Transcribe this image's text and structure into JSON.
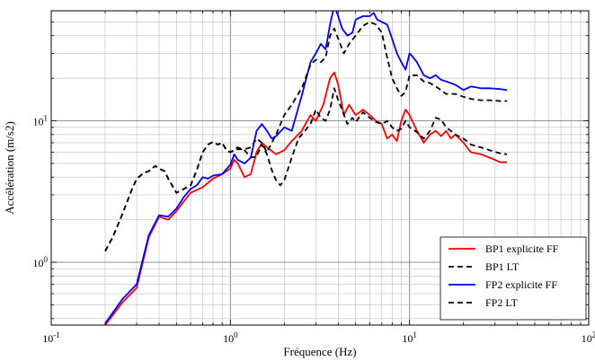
{
  "chart_data": {
    "type": "line",
    "xlabel": "Fréquence (Hz)",
    "ylabel": "Accélération (m/s2)",
    "x_scale": "log",
    "y_scale": "log",
    "xlim": [
      0.1,
      100
    ],
    "ylim": [
      0.36,
      60
    ],
    "grid": true,
    "legend_position": "bottom-right",
    "x_ticks": [
      {
        "base": "10",
        "exp": "-1"
      },
      {
        "base": "10",
        "exp": "0"
      },
      {
        "base": "10",
        "exp": "1"
      },
      {
        "base": "10",
        "exp": "2"
      }
    ],
    "y_ticks": [
      {
        "value": 1,
        "base": "10",
        "exp": "0"
      },
      {
        "value": 10,
        "base": "10",
        "exp": "1"
      }
    ],
    "series": [
      {
        "name": "BP1 explicite FF",
        "color": "#ff0000",
        "dash": "solid",
        "x": [
          0.2,
          0.25,
          0.3,
          0.35,
          0.4,
          0.45,
          0.5,
          0.55,
          0.6,
          0.7,
          0.8,
          0.9,
          1.0,
          1.05,
          1.1,
          1.2,
          1.3,
          1.4,
          1.5,
          1.6,
          1.8,
          2.0,
          2.2,
          2.5,
          2.8,
          3.0,
          3.3,
          3.6,
          3.8,
          4.0,
          4.3,
          4.6,
          5.0,
          5.5,
          6.0,
          6.5,
          7.0,
          7.5,
          8.0,
          8.5,
          9.0,
          9.5,
          10.0,
          11.0,
          12.0,
          13.0,
          14.0,
          15.0,
          16.0,
          17.0,
          18.0,
          20.0,
          22.0,
          25.0,
          28.0,
          32.0,
          35.0
        ],
        "y": [
          0.36,
          0.52,
          0.66,
          1.5,
          2.1,
          2.0,
          2.3,
          2.7,
          3.1,
          3.4,
          3.9,
          4.2,
          4.6,
          5.3,
          5.0,
          4.0,
          4.2,
          6.0,
          7.0,
          6.5,
          5.8,
          6.2,
          7.2,
          8.5,
          11.0,
          10.0,
          13.0,
          20.0,
          22.0,
          18.0,
          11.0,
          13.0,
          11.0,
          12.0,
          11.0,
          10.0,
          9.5,
          7.5,
          8.0,
          7.2,
          10.0,
          12.0,
          11.0,
          8.5,
          7.0,
          8.0,
          8.5,
          7.8,
          8.5,
          7.5,
          8.0,
          7.0,
          6.0,
          5.8,
          5.5,
          5.1,
          5.1
        ]
      },
      {
        "name": "BP1 LT",
        "color": "#000000",
        "dash": "dashed",
        "x": [
          0.2,
          0.22,
          0.25,
          0.28,
          0.3,
          0.33,
          0.35,
          0.38,
          0.4,
          0.43,
          0.45,
          0.5,
          0.55,
          0.6,
          0.65,
          0.7,
          0.75,
          0.8,
          0.85,
          0.9,
          0.95,
          1.0,
          1.1,
          1.2,
          1.3,
          1.4,
          1.5,
          1.6,
          1.7,
          1.8,
          1.9,
          2.0,
          2.2,
          2.4,
          2.6,
          2.8,
          3.0,
          3.2,
          3.4,
          3.6,
          3.8,
          4.0,
          4.2,
          4.5,
          4.8,
          5.0,
          5.5,
          6.0,
          6.5,
          7.0,
          7.5,
          8.0,
          8.5,
          9.0,
          9.5,
          10.0,
          11.0,
          12.0,
          13.0,
          14.0,
          15.0,
          16.0,
          18.0,
          20.0,
          22.0,
          25.0,
          28.0,
          32.0,
          35.0
        ],
        "y": [
          1.2,
          1.5,
          2.2,
          3.2,
          3.9,
          4.3,
          4.4,
          4.8,
          4.6,
          4.4,
          3.9,
          3.1,
          3.3,
          3.5,
          4.5,
          6.0,
          6.8,
          7.1,
          6.8,
          7.0,
          6.2,
          6.0,
          6.5,
          6.2,
          5.5,
          5.6,
          6.8,
          5.8,
          4.5,
          3.8,
          3.5,
          3.8,
          5.5,
          7.5,
          8.5,
          9.5,
          12.0,
          10.5,
          10.0,
          12.0,
          17.0,
          14.0,
          12.0,
          9.5,
          10.5,
          9.8,
          11.5,
          10.5,
          9.8,
          9.5,
          10.0,
          9.0,
          8.5,
          8.8,
          10.0,
          9.0,
          8.3,
          7.5,
          8.5,
          10.5,
          10.2,
          9.0,
          8.0,
          7.5,
          6.8,
          6.5,
          6.2,
          5.9,
          5.8
        ]
      },
      {
        "name": "FP2 explicite FF",
        "color": "#0000ff",
        "dash": "solid",
        "x": [
          0.2,
          0.25,
          0.3,
          0.35,
          0.4,
          0.45,
          0.5,
          0.55,
          0.6,
          0.65,
          0.7,
          0.75,
          0.8,
          0.9,
          1.0,
          1.05,
          1.1,
          1.2,
          1.3,
          1.4,
          1.5,
          1.6,
          1.7,
          1.8,
          2.0,
          2.2,
          2.5,
          2.8,
          3.0,
          3.2,
          3.4,
          3.6,
          3.8,
          4.0,
          4.2,
          4.5,
          4.8,
          5.0,
          5.5,
          6.0,
          6.3,
          6.6,
          7.0,
          7.5,
          8.0,
          8.5,
          9.0,
          9.5,
          10.0,
          10.5,
          11.0,
          12.0,
          13.0,
          14.0,
          15.0,
          16.0,
          18.0,
          20.0,
          22.0,
          25.0,
          28.0,
          32.0,
          35.0
        ],
        "y": [
          0.37,
          0.55,
          0.7,
          1.55,
          2.15,
          2.1,
          2.4,
          2.9,
          3.3,
          3.5,
          4.0,
          3.9,
          4.1,
          4.2,
          4.9,
          5.8,
          5.3,
          5.0,
          5.5,
          8.5,
          9.5,
          8.5,
          7.5,
          7.8,
          9.0,
          8.5,
          15.0,
          26.0,
          30.0,
          35.0,
          32.0,
          48.0,
          65.0,
          55.0,
          45.0,
          40.0,
          42.0,
          52.0,
          55.0,
          55.0,
          58.0,
          52.0,
          50.0,
          48.0,
          38.0,
          30.0,
          26.0,
          23.0,
          30.0,
          28.0,
          26.0,
          21.0,
          20.0,
          21.0,
          19.5,
          19.0,
          18.0,
          16.5,
          17.5,
          17.0,
          17.0,
          16.8,
          16.5
        ]
      },
      {
        "name": "FP2 LT",
        "color": "#000000",
        "dash": "dashed",
        "x": [
          0.2,
          0.22,
          0.25,
          0.28,
          0.3,
          0.33,
          0.35,
          0.38,
          0.4,
          0.43,
          0.45,
          0.5,
          0.55,
          0.6,
          0.65,
          0.7,
          0.75,
          0.8,
          0.85,
          0.9,
          0.95,
          1.0,
          1.1,
          1.2,
          1.3,
          1.4,
          1.5,
          1.6,
          1.8,
          2.0,
          2.2,
          2.5,
          2.8,
          3.0,
          3.2,
          3.4,
          3.6,
          3.8,
          4.0,
          4.3,
          4.6,
          5.0,
          5.5,
          6.0,
          6.5,
          7.0,
          7.5,
          8.0,
          8.5,
          9.0,
          9.5,
          10.0,
          11.0,
          12.0,
          13.0,
          14.0,
          15.0,
          16.0,
          18.0,
          20.0,
          22.0,
          25.0,
          28.0,
          32.0,
          35.0
        ],
        "y": [
          1.2,
          1.5,
          2.2,
          3.2,
          3.9,
          4.3,
          4.4,
          4.8,
          4.6,
          4.4,
          3.9,
          3.1,
          3.3,
          3.5,
          4.5,
          6.0,
          6.8,
          7.1,
          6.8,
          7.0,
          6.2,
          6.0,
          6.3,
          6.3,
          6.5,
          7.5,
          7.0,
          6.0,
          8.0,
          11.0,
          13.0,
          17.0,
          25.0,
          27.0,
          26.0,
          28.0,
          40.0,
          45.0,
          38.0,
          30.0,
          35.0,
          40.0,
          47.0,
          50.0,
          48.0,
          42.0,
          28.0,
          20.0,
          17.0,
          15.0,
          16.0,
          21.0,
          21.0,
          19.0,
          18.5,
          17.5,
          16.5,
          15.5,
          15.5,
          14.8,
          14.3,
          14.0,
          14.0,
          13.8,
          13.8
        ]
      }
    ]
  }
}
